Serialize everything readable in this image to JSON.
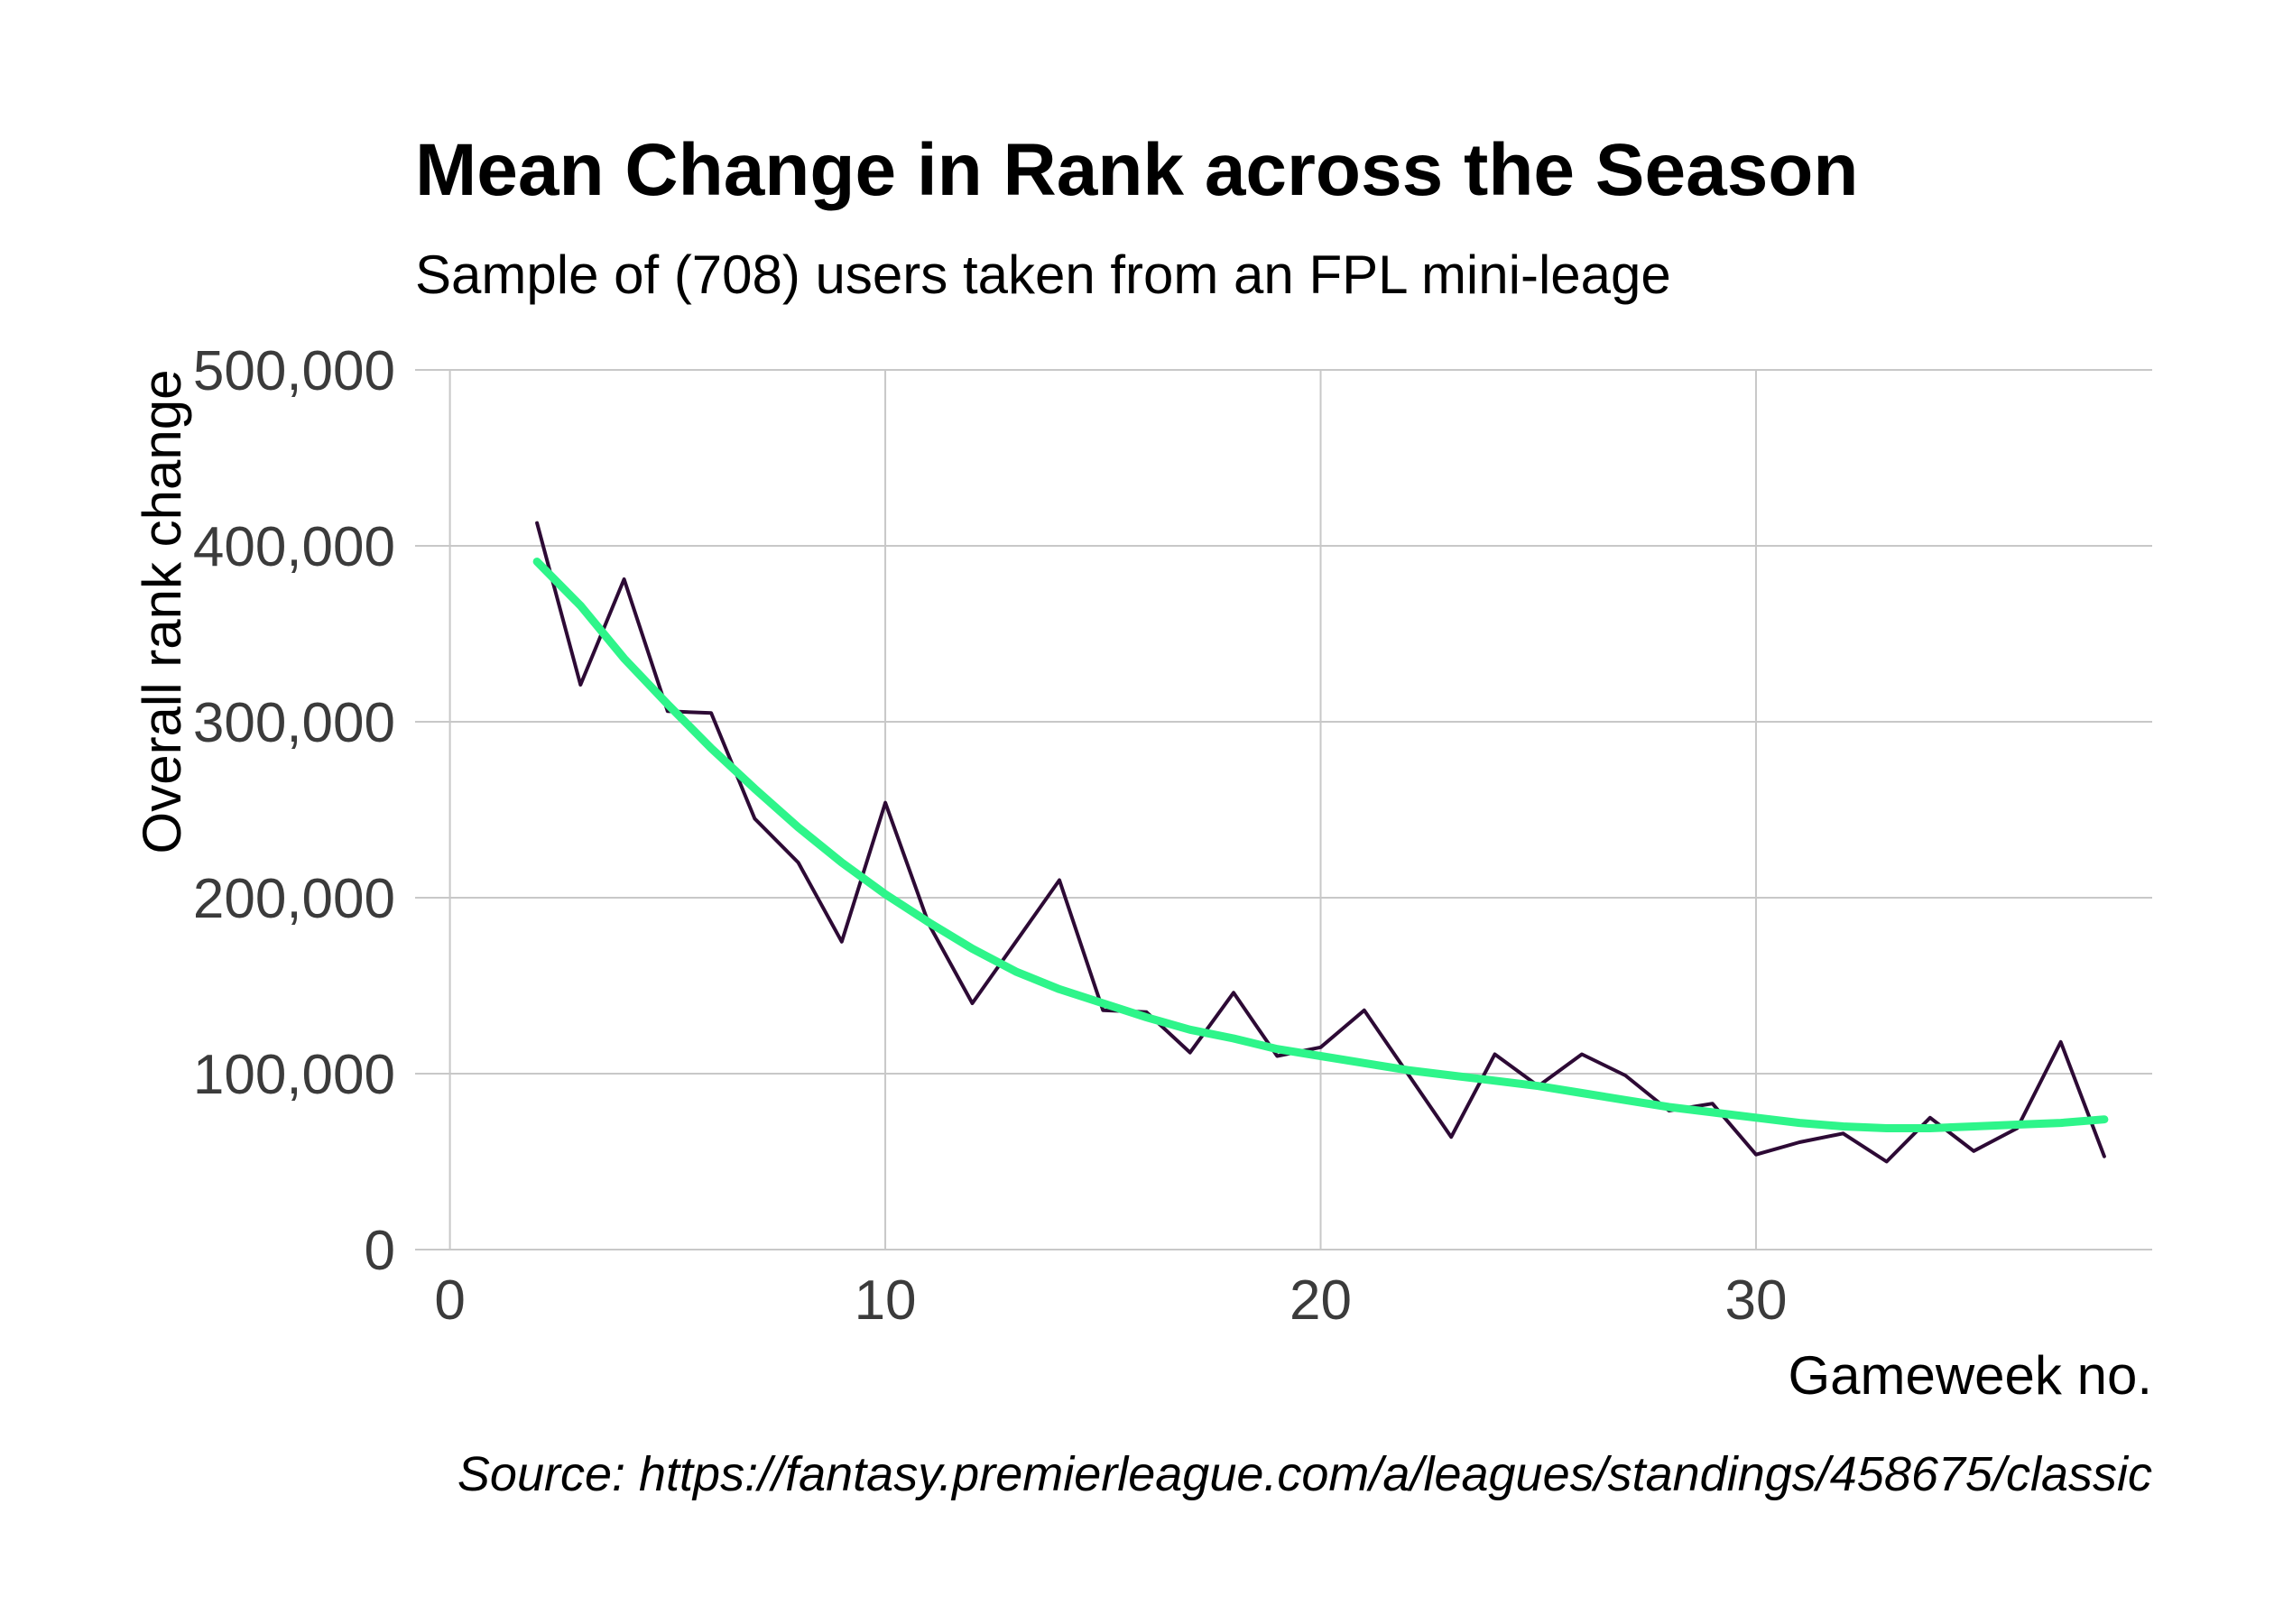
{
  "chart_data": {
    "type": "line",
    "title": "Mean Change in Rank across the Season",
    "subtitle": "Sample of (708) users taken from an FPL mini-leage",
    "xlabel": "Gameweek no.",
    "ylabel": "Overall rank change",
    "caption": "Source: https://fantasy.premierleague.com/a/leagues/standings/458675/classic",
    "xlim": [
      -0.8,
      39.1
    ],
    "ylim": [
      0,
      500000
    ],
    "x_ticks": [
      {
        "value": 0,
        "label": "0"
      },
      {
        "value": 10,
        "label": "10"
      },
      {
        "value": 20,
        "label": "20"
      },
      {
        "value": 30,
        "label": "30"
      }
    ],
    "y_ticks": [
      {
        "value": 0,
        "label": "0"
      },
      {
        "value": 100000,
        "label": "100,000"
      },
      {
        "value": 200000,
        "label": "200,000"
      },
      {
        "value": 300000,
        "label": "300,000"
      },
      {
        "value": 400000,
        "label": "400,000"
      },
      {
        "value": 500000,
        "label": "500,000"
      }
    ],
    "grid": true,
    "series": [
      {
        "kind": "data",
        "color": "#2d0a35",
        "x": [
          2,
          3,
          4,
          5,
          6,
          7,
          8,
          9,
          10,
          11,
          12,
          13,
          14,
          15,
          16,
          17,
          18,
          19,
          20,
          21,
          22,
          23,
          24,
          25,
          26,
          27,
          28,
          29,
          30,
          31,
          32,
          33,
          34,
          35,
          36,
          37,
          38
        ],
        "y": [
          413000,
          321000,
          381000,
          306000,
          305000,
          245000,
          220000,
          175000,
          254000,
          185000,
          140000,
          175000,
          210000,
          136000,
          135000,
          112000,
          146000,
          110000,
          115000,
          136000,
          100000,
          64000,
          111000,
          93000,
          111000,
          99000,
          79000,
          83000,
          54000,
          61000,
          66000,
          50000,
          75000,
          56000,
          69000,
          118000,
          53000
        ]
      },
      {
        "kind": "smooth",
        "color": "#2ef58a",
        "x": [
          2,
          3,
          4,
          5,
          6,
          7,
          8,
          9,
          10,
          11,
          12,
          13,
          14,
          15,
          16,
          17,
          18,
          19,
          20,
          21,
          22,
          23,
          24,
          25,
          26,
          27,
          28,
          29,
          30,
          31,
          32,
          33,
          34,
          35,
          36,
          37,
          38
        ],
        "y": [
          391000,
          366000,
          336000,
          310000,
          285000,
          262000,
          240000,
          220000,
          202000,
          186000,
          171000,
          158000,
          148000,
          140000,
          132000,
          125000,
          120000,
          114000,
          110000,
          106000,
          102000,
          99000,
          96000,
          93000,
          89000,
          85000,
          81000,
          78000,
          75000,
          72000,
          70000,
          69000,
          69000,
          70000,
          71000,
          72000,
          74000
        ]
      }
    ]
  }
}
